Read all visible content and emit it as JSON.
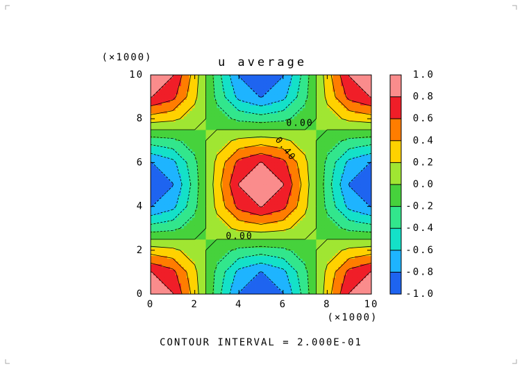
{
  "chart_data": {
    "type": "contour",
    "title": "u average",
    "x_multiplier": "(×1000)",
    "y_multiplier": "(×1000)",
    "footer": "CONTOUR INTERVAL = 2.000E-01",
    "x": [
      0,
      1,
      2,
      3,
      4,
      5,
      6,
      7,
      8,
      9,
      10
    ],
    "y": [
      0,
      1,
      2,
      3,
      4,
      5,
      6,
      7,
      8,
      9,
      10
    ],
    "z": [
      [
        1,
        0.81,
        0.31,
        -0.31,
        -0.81,
        -1,
        -0.81,
        -0.31,
        0.31,
        0.81,
        1
      ],
      [
        0.81,
        0.66,
        0.25,
        -0.25,
        -0.66,
        -0.81,
        -0.66,
        -0.25,
        0.25,
        0.66,
        0.81
      ],
      [
        0.31,
        0.25,
        0.1,
        -0.1,
        -0.25,
        -0.31,
        -0.25,
        -0.1,
        0.1,
        0.25,
        0.31
      ],
      [
        -0.31,
        -0.25,
        -0.1,
        0.1,
        0.25,
        0.31,
        0.25,
        0.1,
        -0.1,
        -0.25,
        -0.31
      ],
      [
        -0.81,
        -0.66,
        -0.25,
        0.25,
        0.66,
        0.81,
        0.66,
        0.25,
        -0.25,
        -0.66,
        -0.81
      ],
      [
        -1,
        -0.81,
        -0.31,
        0.31,
        0.81,
        1,
        0.81,
        0.31,
        -0.31,
        -0.81,
        -1
      ],
      [
        -0.81,
        -0.66,
        -0.25,
        0.25,
        0.66,
        0.81,
        0.66,
        0.25,
        -0.25,
        -0.66,
        -0.81
      ],
      [
        -0.31,
        -0.25,
        -0.1,
        0.1,
        0.25,
        0.31,
        0.25,
        0.1,
        -0.1,
        -0.25,
        -0.31
      ],
      [
        0.31,
        0.25,
        0.1,
        -0.1,
        -0.25,
        -0.31,
        -0.25,
        -0.1,
        0.1,
        0.25,
        0.31
      ],
      [
        0.81,
        0.66,
        0.25,
        -0.25,
        -0.66,
        -0.81,
        -0.66,
        -0.25,
        0.25,
        0.66,
        0.81
      ],
      [
        1,
        0.81,
        0.31,
        -0.31,
        -0.81,
        -1,
        -0.81,
        -0.31,
        0.31,
        0.81,
        1
      ]
    ],
    "xlim": [
      0,
      10
    ],
    "ylim": [
      0,
      10
    ],
    "xticks": [
      0,
      2,
      4,
      6,
      8,
      10
    ],
    "yticks": [
      0,
      2,
      4,
      6,
      8,
      10
    ],
    "levels": [
      {
        "value": -1,
        "label": "-1.0"
      },
      {
        "value": -0.8,
        "label": "-0.8"
      },
      {
        "value": -0.6,
        "label": "-0.6"
      },
      {
        "value": -0.4,
        "label": "-0.4"
      },
      {
        "value": -0.2,
        "label": "-0.2"
      },
      {
        "value": 0,
        "label": "0.0"
      },
      {
        "value": 0.2,
        "label": "0.2"
      },
      {
        "value": 0.4,
        "label": "0.4"
      },
      {
        "value": 0.6,
        "label": "0.6"
      },
      {
        "value": 0.8,
        "label": "0.8"
      },
      {
        "value": 1,
        "label": "1.0"
      }
    ],
    "colors": [
      "#1e64f0",
      "#1eb4ff",
      "#14e1c8",
      "#32e68c",
      "#46d23c",
      "#a0e632",
      "#ffd200",
      "#ff7d00",
      "#f01e28",
      "#fa8c8c"
    ],
    "annotations": [
      {
        "text": "0.00"
      },
      {
        "text": "0.40"
      },
      {
        "text": "0.00"
      }
    ]
  }
}
